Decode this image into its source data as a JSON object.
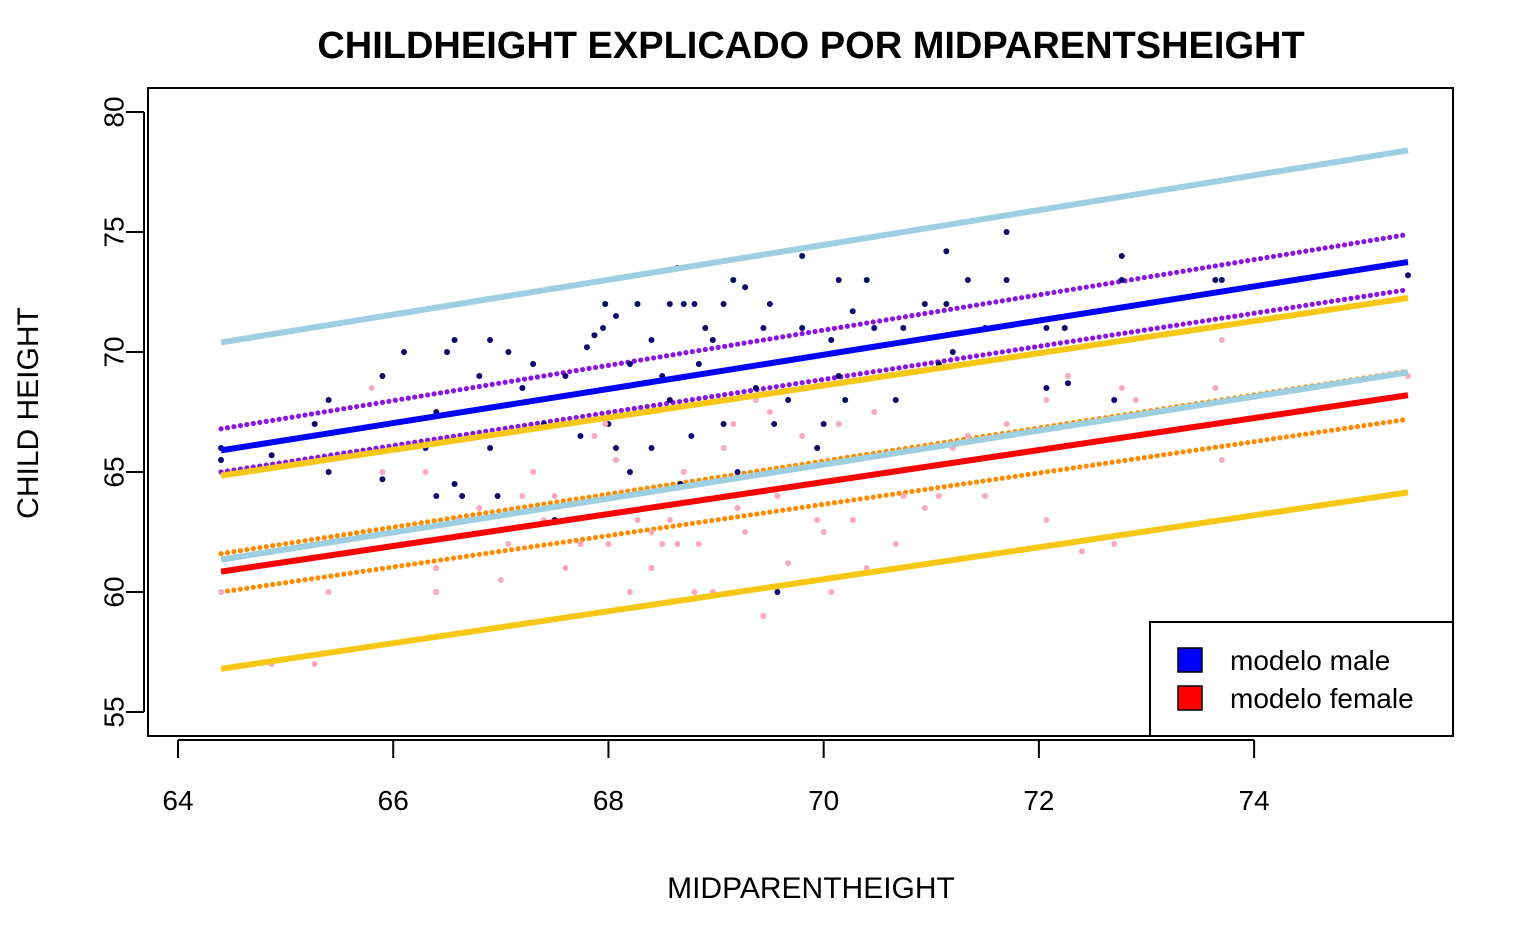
{
  "chart_data": {
    "type": "scatter",
    "title": "CHILDHEIGHT EXPLICADO POR MIDPARENTSHEIGHT",
    "xlabel": "MIDPARENTHEIGHT",
    "ylabel": "CHILD HEIGHT",
    "xlim": [
      64,
      75.5
    ],
    "ylim": [
      54,
      80.5
    ],
    "x_ticks": [
      64,
      66,
      68,
      70,
      72,
      74
    ],
    "y_ticks": [
      55,
      60,
      65,
      70,
      75,
      80
    ],
    "legend_position": "bottom-right",
    "legend": [
      {
        "label": "modelo male",
        "color": "#0000ff"
      },
      {
        "label": "modelo female",
        "color": "#ff0000"
      }
    ],
    "lines": [
      {
        "id": "male-upper-prediction",
        "color": "#9ecfe0",
        "x": [
          64.4,
          75.43
        ],
        "y": [
          70.4,
          78.4
        ]
      },
      {
        "id": "male-fit",
        "color": "#0000ff",
        "x": [
          64.4,
          75.43
        ],
        "y": [
          65.9,
          73.75
        ]
      },
      {
        "id": "male-lower-prediction",
        "color": "#f6c815",
        "x": [
          64.4,
          75.43
        ],
        "y": [
          64.85,
          72.25
        ]
      },
      {
        "id": "female-upper-prediction",
        "color": "#9ecfe0",
        "x": [
          64.4,
          75.43
        ],
        "y": [
          61.35,
          69.15
        ]
      },
      {
        "id": "female-fit",
        "color": "#ff0000",
        "x": [
          64.4,
          75.43
        ],
        "y": [
          60.85,
          68.2
        ]
      },
      {
        "id": "female-lower-prediction",
        "color": "#f6c815",
        "x": [
          64.4,
          75.43
        ],
        "y": [
          56.8,
          64.15
        ]
      }
    ],
    "series": [
      {
        "id": "male-observed",
        "color": "#0b0a6e",
        "points": [
          [
            64.4,
            65.5
          ],
          [
            64.4,
            66.0
          ],
          [
            64.87,
            65.7
          ],
          [
            65.27,
            67.0
          ],
          [
            65.4,
            68.0
          ],
          [
            65.4,
            65.0
          ],
          [
            65.9,
            64.7
          ],
          [
            65.9,
            69.0
          ],
          [
            66.1,
            70.0
          ],
          [
            66.3,
            66.0
          ],
          [
            66.4,
            64.0
          ],
          [
            66.4,
            67.5
          ],
          [
            66.5,
            70.0
          ],
          [
            66.57,
            70.5
          ],
          [
            66.57,
            64.5
          ],
          [
            66.64,
            64.0
          ],
          [
            66.8,
            69.0
          ],
          [
            66.9,
            70.5
          ],
          [
            66.9,
            66.0
          ],
          [
            66.97,
            64.0
          ],
          [
            67.07,
            70.0
          ],
          [
            67.2,
            68.5
          ],
          [
            67.3,
            69.5
          ],
          [
            67.4,
            67.0
          ],
          [
            67.5,
            63.0
          ],
          [
            67.6,
            69.0
          ],
          [
            67.74,
            66.5
          ],
          [
            67.8,
            70.2
          ],
          [
            67.87,
            70.7
          ],
          [
            67.95,
            71.0
          ],
          [
            67.97,
            72.0
          ],
          [
            68.0,
            67.0
          ],
          [
            68.07,
            66.0
          ],
          [
            68.07,
            68.5
          ],
          [
            68.07,
            71.5
          ],
          [
            68.2,
            65.0
          ],
          [
            68.2,
            69.5
          ],
          [
            68.27,
            72.0
          ],
          [
            68.4,
            66.0
          ],
          [
            68.4,
            70.5
          ],
          [
            68.5,
            69.0
          ],
          [
            68.57,
            72.0
          ],
          [
            68.57,
            68.0
          ],
          [
            68.64,
            73.5
          ],
          [
            68.67,
            64.5
          ],
          [
            68.7,
            72.0
          ],
          [
            68.77,
            66.5
          ],
          [
            68.8,
            72.0
          ],
          [
            68.84,
            69.5
          ],
          [
            68.9,
            71.0
          ],
          [
            68.97,
            70.5
          ],
          [
            69.07,
            67.0
          ],
          [
            69.07,
            72.0
          ],
          [
            69.16,
            73.0
          ],
          [
            69.2,
            65.0
          ],
          [
            69.27,
            72.7
          ],
          [
            69.37,
            68.5
          ],
          [
            69.44,
            71.0
          ],
          [
            69.5,
            72.0
          ],
          [
            69.54,
            67.0
          ],
          [
            69.57,
            60.0
          ],
          [
            69.67,
            68.0
          ],
          [
            69.8,
            71.0
          ],
          [
            69.8,
            74.0
          ],
          [
            69.94,
            66.0
          ],
          [
            70.0,
            67.0
          ],
          [
            70.07,
            70.5
          ],
          [
            70.14,
            73.0
          ],
          [
            70.14,
            69.0
          ],
          [
            70.2,
            68.0
          ],
          [
            70.27,
            71.7
          ],
          [
            70.4,
            73.0
          ],
          [
            70.47,
            71.0
          ],
          [
            70.67,
            68.0
          ],
          [
            70.74,
            71.0
          ],
          [
            70.94,
            72.0
          ],
          [
            71.07,
            69.5
          ],
          [
            71.14,
            72.0
          ],
          [
            71.14,
            74.2
          ],
          [
            71.2,
            70.0
          ],
          [
            71.34,
            73.0
          ],
          [
            71.5,
            71.0
          ],
          [
            71.7,
            73.0
          ],
          [
            71.7,
            75.0
          ],
          [
            72.07,
            71.0
          ],
          [
            72.07,
            68.5
          ],
          [
            72.24,
            71.0
          ],
          [
            72.27,
            68.7
          ],
          [
            72.7,
            68.0
          ],
          [
            72.77,
            73.0
          ],
          [
            72.77,
            74.0
          ],
          [
            73.64,
            73.0
          ],
          [
            73.7,
            73.0
          ],
          [
            75.43,
            73.2
          ]
        ]
      },
      {
        "id": "female-observed",
        "color": "#f8a8c0",
        "points": [
          [
            64.4,
            60.0
          ],
          [
            64.87,
            57.0
          ],
          [
            65.27,
            57.0
          ],
          [
            65.4,
            60.0
          ],
          [
            65.8,
            68.5
          ],
          [
            65.9,
            65.0
          ],
          [
            66.3,
            65.0
          ],
          [
            66.4,
            60.0
          ],
          [
            66.4,
            61.0
          ],
          [
            66.6,
            63.0
          ],
          [
            66.8,
            63.5
          ],
          [
            67.0,
            60.5
          ],
          [
            67.07,
            62.0
          ],
          [
            67.2,
            64.0
          ],
          [
            67.3,
            65.0
          ],
          [
            67.4,
            63.0
          ],
          [
            67.5,
            64.0
          ],
          [
            67.6,
            61.0
          ],
          [
            67.74,
            62.0
          ],
          [
            67.87,
            66.5
          ],
          [
            67.97,
            67.0
          ],
          [
            68.0,
            62.0
          ],
          [
            68.07,
            65.5
          ],
          [
            68.2,
            60.0
          ],
          [
            68.27,
            63.0
          ],
          [
            68.4,
            62.5
          ],
          [
            68.4,
            61.0
          ],
          [
            68.5,
            62.0
          ],
          [
            68.57,
            63.0
          ],
          [
            68.64,
            62.0
          ],
          [
            68.7,
            65.0
          ],
          [
            68.8,
            60.0
          ],
          [
            68.84,
            62.0
          ],
          [
            68.97,
            60.0
          ],
          [
            69.07,
            66.0
          ],
          [
            69.16,
            67.0
          ],
          [
            69.2,
            63.5
          ],
          [
            69.27,
            62.5
          ],
          [
            69.37,
            68.0
          ],
          [
            69.44,
            59.0
          ],
          [
            69.5,
            67.5
          ],
          [
            69.57,
            64.0
          ],
          [
            69.67,
            61.2
          ],
          [
            69.8,
            66.5
          ],
          [
            69.94,
            63.0
          ],
          [
            70.0,
            62.5
          ],
          [
            70.07,
            60.0
          ],
          [
            70.14,
            67.0
          ],
          [
            70.27,
            63.0
          ],
          [
            70.4,
            61.0
          ],
          [
            70.47,
            67.5
          ],
          [
            70.67,
            62.0
          ],
          [
            70.74,
            64.0
          ],
          [
            70.94,
            63.5
          ],
          [
            71.07,
            64.0
          ],
          [
            71.2,
            66.0
          ],
          [
            71.34,
            66.5
          ],
          [
            71.5,
            64.0
          ],
          [
            71.7,
            67.0
          ],
          [
            72.07,
            63.0
          ],
          [
            72.07,
            68.0
          ],
          [
            72.27,
            69.0
          ],
          [
            72.4,
            61.7
          ],
          [
            72.7,
            62.0
          ],
          [
            72.77,
            68.5
          ],
          [
            72.9,
            68.0
          ],
          [
            73.64,
            68.5
          ],
          [
            73.7,
            65.5
          ],
          [
            73.7,
            70.5
          ],
          [
            75.43,
            69.0
          ]
        ]
      },
      {
        "id": "male-fitted-values",
        "color": "#8a15e0",
        "style": "dotted-bands",
        "x_range": [
          64.4,
          75.43
        ],
        "y_start": [
          65.0,
          66.8
        ],
        "y_end": [
          72.6,
          74.9
        ]
      },
      {
        "id": "female-fitted-values",
        "color": "#ff8c00",
        "style": "dotted-bands",
        "x_range": [
          64.4,
          75.43
        ],
        "y_start": [
          60.0,
          61.6
        ],
        "y_end": [
          67.2,
          69.2
        ]
      }
    ]
  }
}
